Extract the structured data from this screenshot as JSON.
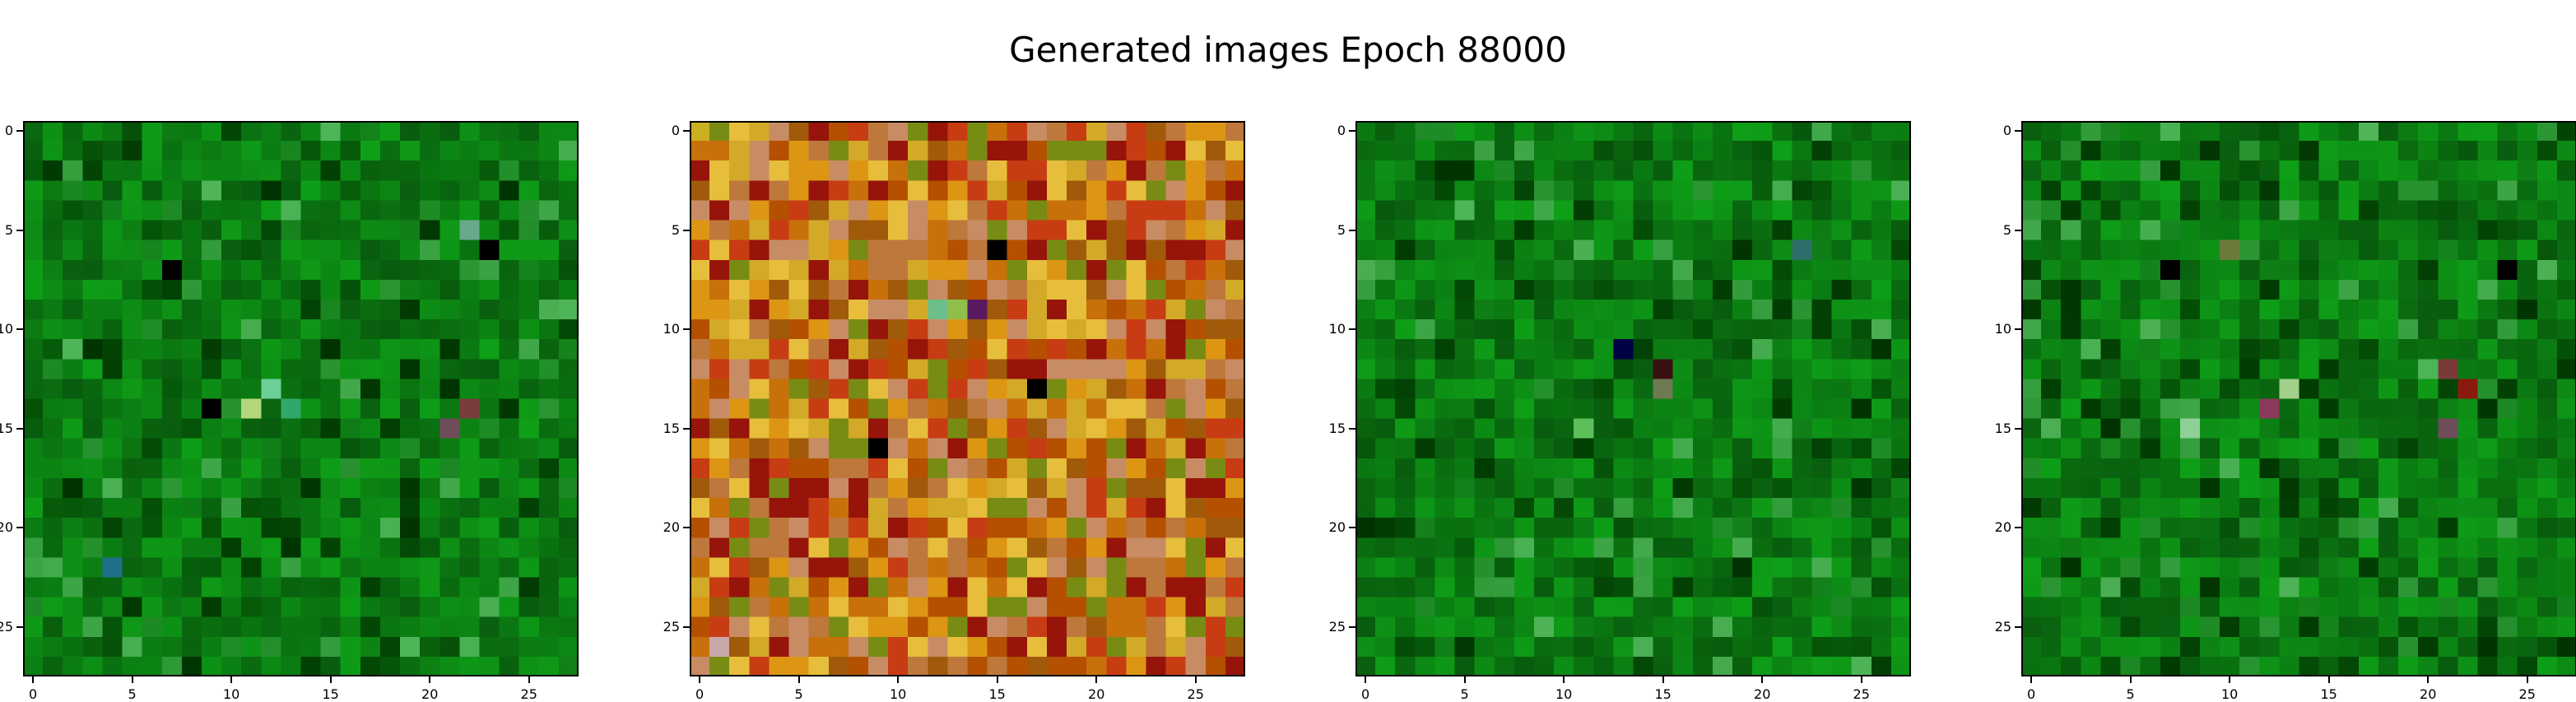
{
  "figure": {
    "title": "Generated images Epoch 88000"
  },
  "chart_data": [
    {
      "type": "heatmap",
      "title": "",
      "grid_size": 28,
      "palette": "green",
      "x_ticks": [
        "0",
        "5",
        "10",
        "15",
        "20",
        "25"
      ],
      "y_ticks": [
        "0",
        "5",
        "10",
        "15",
        "20",
        "25"
      ],
      "xlim": [
        -0.5,
        27.5
      ],
      "ylim": [
        27.5,
        -0.5
      ],
      "colors": {
        "base": "#0b7a12",
        "dark": "#003300",
        "highlight": "#6fd07a"
      },
      "highlights": [
        {
          "x": 7,
          "y": 7,
          "color": "#000000"
        },
        {
          "x": 9,
          "y": 14,
          "color": "#000000"
        },
        {
          "x": 12,
          "y": 13,
          "color": "#6dcf98"
        },
        {
          "x": 11,
          "y": 14,
          "color": "#b3d77a"
        },
        {
          "x": 13,
          "y": 14,
          "color": "#32a76a"
        },
        {
          "x": 22,
          "y": 14,
          "color": "#7a3d3d"
        },
        {
          "x": 21,
          "y": 15,
          "color": "#6f4d5a"
        },
        {
          "x": 23,
          "y": 6,
          "color": "#000000"
        },
        {
          "x": 22,
          "y": 5,
          "color": "#6aa88c"
        },
        {
          "x": 4,
          "y": 22,
          "color": "#1e6f8a"
        }
      ]
    },
    {
      "type": "heatmap",
      "title": "",
      "grid_size": 28,
      "palette": "warm",
      "x_ticks": [
        "0",
        "5",
        "10",
        "15",
        "20",
        "25"
      ],
      "y_ticks": [
        "0",
        "5",
        "10",
        "15",
        "20",
        "25"
      ],
      "xlim": [
        -0.5,
        27.5
      ],
      "ylim": [
        27.5,
        -0.5
      ],
      "colors": {
        "base": "#c8700a",
        "dark": "#5a1a00",
        "highlight": "#e8c040"
      },
      "highlights": [
        {
          "x": 15,
          "y": 6,
          "color": "#000000"
        },
        {
          "x": 12,
          "y": 9,
          "color": "#6cbf8a"
        },
        {
          "x": 14,
          "y": 9,
          "color": "#5a1a60"
        },
        {
          "x": 13,
          "y": 9,
          "color": "#8fbf4a"
        },
        {
          "x": 9,
          "y": 16,
          "color": "#000000"
        },
        {
          "x": 17,
          "y": 13,
          "color": "#000000"
        },
        {
          "x": 1,
          "y": 26,
          "color": "#c9a6a8"
        },
        {
          "x": 0,
          "y": 0,
          "color": "#c8b020"
        }
      ]
    },
    {
      "type": "heatmap",
      "title": "",
      "grid_size": 28,
      "palette": "green",
      "x_ticks": [
        "0",
        "5",
        "10",
        "15",
        "20",
        "25"
      ],
      "y_ticks": [
        "0",
        "5",
        "10",
        "15",
        "20",
        "25"
      ],
      "xlim": [
        -0.5,
        27.5
      ],
      "ylim": [
        27.5,
        -0.5
      ],
      "colors": {
        "base": "#0b7a12",
        "dark": "#003300",
        "highlight": "#6fd07a"
      },
      "highlights": [
        {
          "x": 13,
          "y": 11,
          "color": "#000044"
        },
        {
          "x": 15,
          "y": 12,
          "color": "#3a1010"
        },
        {
          "x": 15,
          "y": 13,
          "color": "#6d7a52"
        },
        {
          "x": 22,
          "y": 6,
          "color": "#2e6e6a"
        },
        {
          "x": 11,
          "y": 15,
          "color": "#5dbf5a"
        }
      ]
    },
    {
      "type": "heatmap",
      "title": "",
      "grid_size": 28,
      "palette": "green",
      "x_ticks": [
        "0",
        "5",
        "10",
        "15",
        "20",
        "25"
      ],
      "y_ticks": [
        "0",
        "5",
        "10",
        "15",
        "20",
        "25"
      ],
      "xlim": [
        -0.5,
        27.5
      ],
      "ylim": [
        27.5,
        -0.5
      ],
      "colors": {
        "base": "#0b7a12",
        "dark": "#003300",
        "highlight": "#6fd07a"
      },
      "highlights": [
        {
          "x": 7,
          "y": 7,
          "color": "#000000"
        },
        {
          "x": 10,
          "y": 6,
          "color": "#6a7a3a"
        },
        {
          "x": 13,
          "y": 13,
          "color": "#a0d08a"
        },
        {
          "x": 12,
          "y": 14,
          "color": "#8a3a5a"
        },
        {
          "x": 22,
          "y": 13,
          "color": "#8a1a10"
        },
        {
          "x": 21,
          "y": 15,
          "color": "#6f4d5a"
        },
        {
          "x": 21,
          "y": 12,
          "color": "#7a3a3a"
        },
        {
          "x": 24,
          "y": 7,
          "color": "#000000"
        },
        {
          "x": 8,
          "y": 15,
          "color": "#8fcf98"
        }
      ]
    }
  ]
}
